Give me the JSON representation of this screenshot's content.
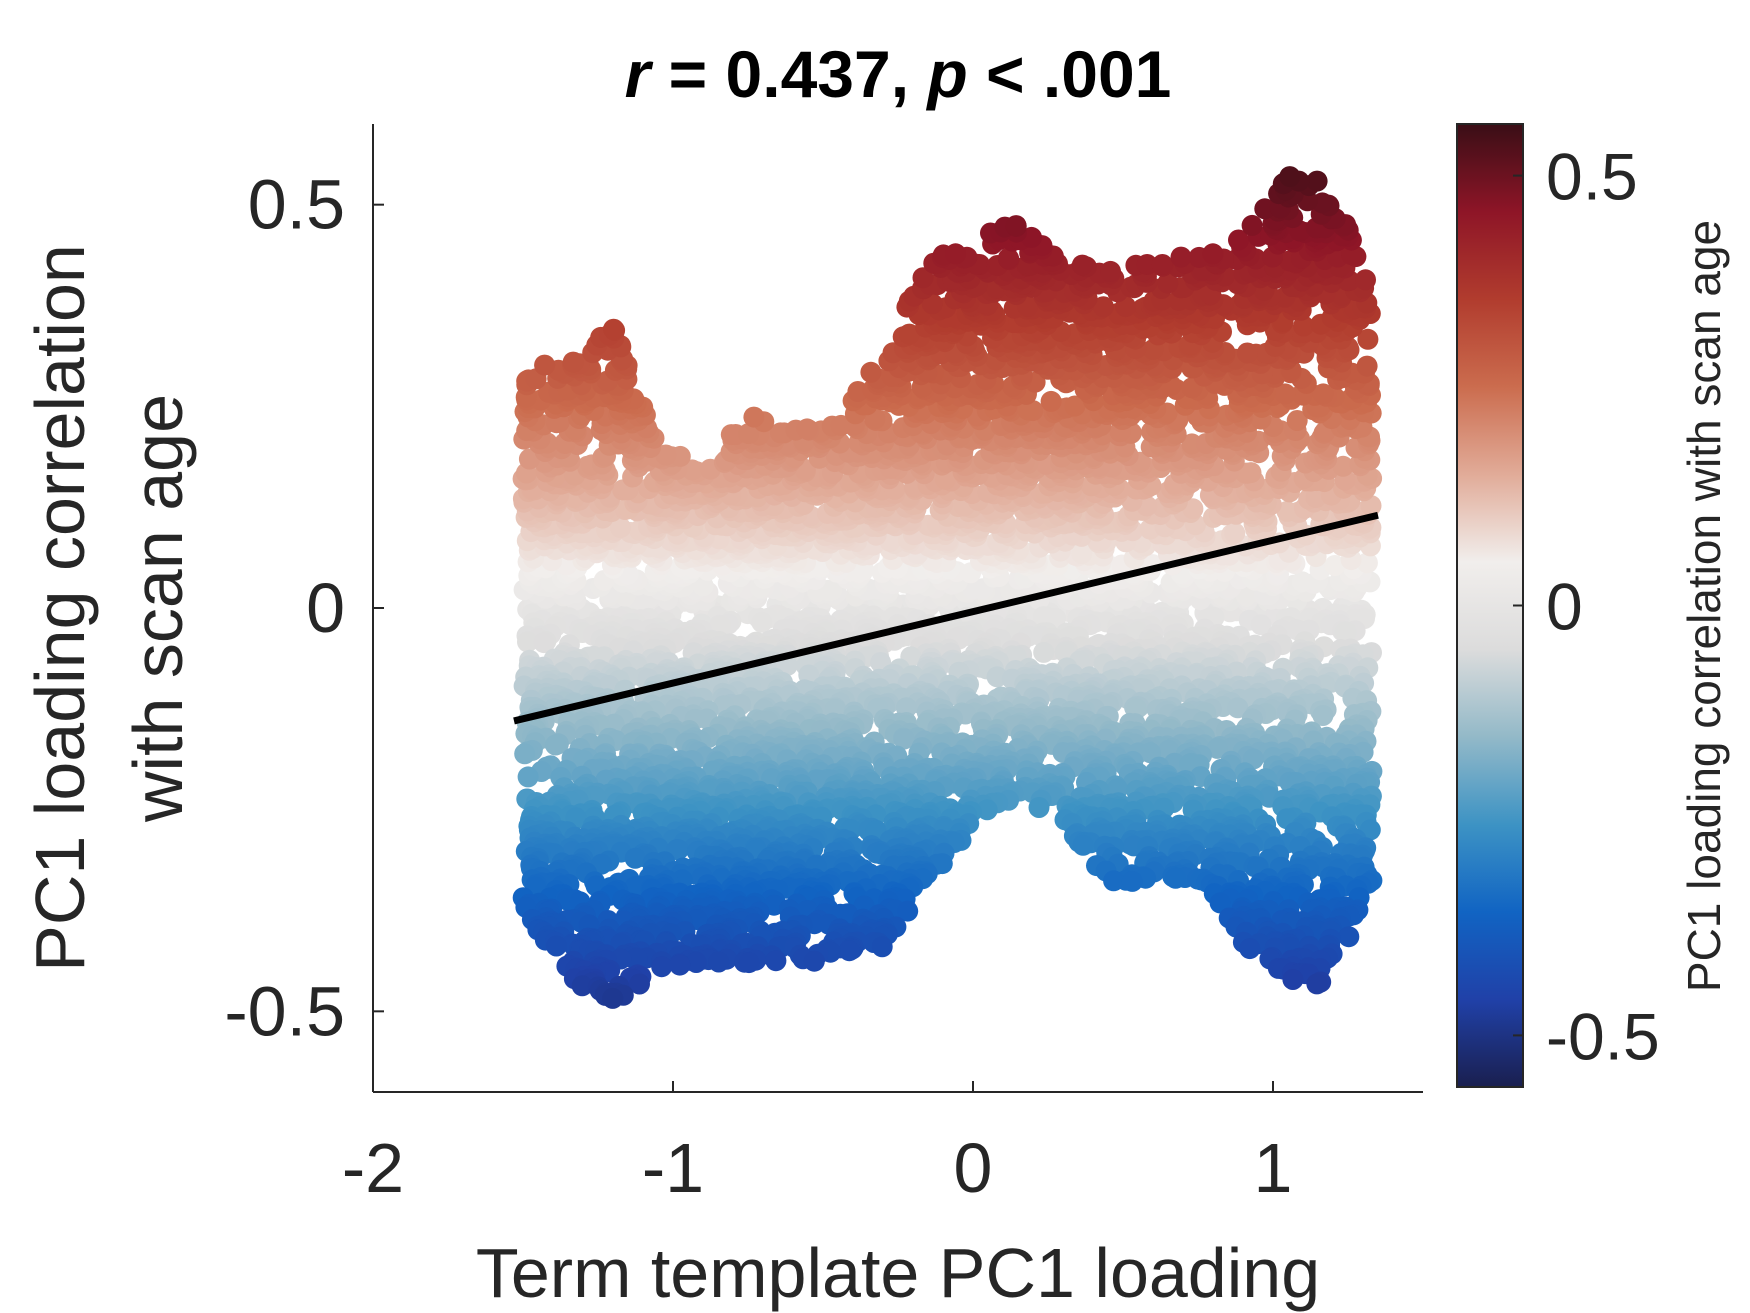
{
  "chart_data": {
    "type": "scatter",
    "title": {
      "r_symbol": "r",
      "r_text": " = 0.437, ",
      "p_symbol": "p",
      "p_text": " < .001"
    },
    "xlabel": "Term template PC1 loading",
    "ylabel_line1": "PC1 loading correlation",
    "ylabel_line2": "with scan age",
    "xlim": [
      -2,
      1.5
    ],
    "ylim": [
      -0.6,
      0.6
    ],
    "xticks": [
      -2,
      -1,
      0,
      1
    ],
    "xtick_labels": [
      "-2",
      "-1",
      "0",
      "1"
    ],
    "yticks": [
      -0.5,
      0,
      0.5
    ],
    "ytick_labels": [
      "-0.5",
      "0",
      "0.5"
    ],
    "grid": false,
    "fit_line": {
      "x": [
        -1.53,
        1.35
      ],
      "y": [
        -0.14,
        0.115
      ],
      "color": "#000000"
    },
    "colorbar": {
      "label": "PC1 loading correlation with scan age",
      "limits": [
        -0.56,
        0.56
      ],
      "ticks": [
        -0.5,
        0,
        0.5
      ],
      "tick_labels": [
        "-0.5",
        "0",
        "0.5"
      ],
      "colors": [
        "#1a1f4f",
        "#2041a8",
        "#1164c3",
        "#3d93c4",
        "#93b9c8",
        "#dcdcdc",
        "#f1eeec",
        "#e1ab98",
        "#cb6c4e",
        "#b13c2e",
        "#8e1527",
        "#3a0e16"
      ]
    },
    "point_envelope": {
      "x": [
        -1.5,
        -1.35,
        -1.2,
        -1.05,
        -0.9,
        -0.75,
        -0.6,
        -0.45,
        -0.3,
        -0.15,
        0.0,
        0.15,
        0.3,
        0.45,
        0.6,
        0.75,
        0.9,
        1.05,
        1.2,
        1.33
      ],
      "y_max": [
        0.32,
        0.31,
        0.36,
        0.22,
        0.18,
        0.26,
        0.23,
        0.24,
        0.33,
        0.44,
        0.47,
        0.49,
        0.44,
        0.43,
        0.44,
        0.45,
        0.47,
        0.56,
        0.53,
        0.4
      ],
      "y_min": [
        -0.38,
        -0.47,
        -0.5,
        -0.46,
        -0.45,
        -0.45,
        -0.45,
        -0.45,
        -0.43,
        -0.35,
        -0.28,
        -0.24,
        -0.28,
        -0.35,
        -0.35,
        -0.35,
        -0.44,
        -0.48,
        -0.48,
        -0.37
      ]
    },
    "points_per_column": 70,
    "marker_color_by": "y value"
  }
}
